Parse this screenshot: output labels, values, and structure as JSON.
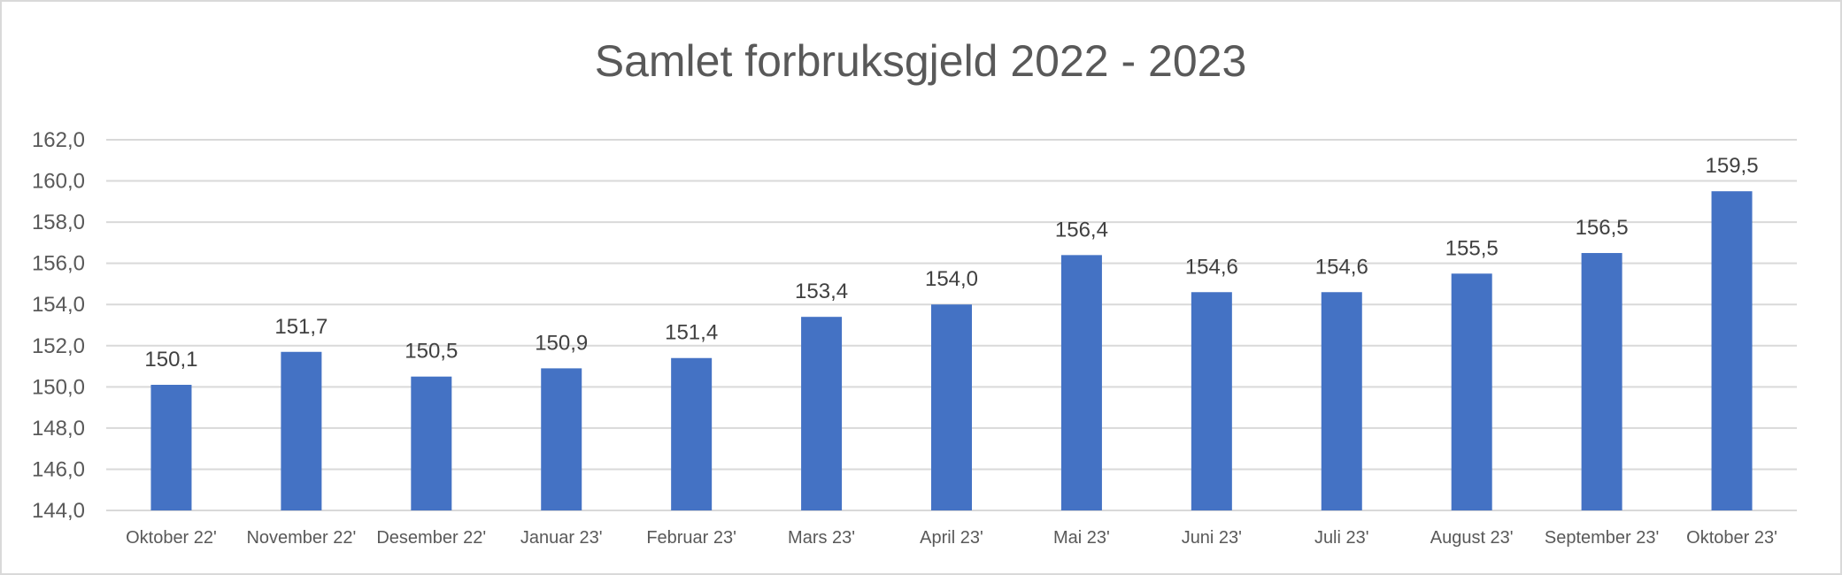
{
  "chart_data": {
    "type": "bar",
    "title": "Samlet forbruksgjeld 2022 - 2023",
    "categories": [
      "Oktober 22'",
      "November 22'",
      "Desember 22'",
      "Januar 23'",
      "Februar 23'",
      "Mars 23'",
      "April 23'",
      "Mai 23'",
      "Juni 23'",
      "Juli 23'",
      "August 23'",
      "September 23'",
      "Oktober 23'"
    ],
    "values": [
      150.1,
      151.7,
      150.5,
      150.9,
      151.4,
      153.4,
      154.0,
      156.4,
      154.6,
      154.6,
      155.5,
      156.5,
      159.5
    ],
    "value_labels": [
      "150,1",
      "151,7",
      "150,5",
      "150,9",
      "151,4",
      "153,4",
      "154,0",
      "156,4",
      "154,6",
      "154,6",
      "155,5",
      "156,5",
      "159,5"
    ],
    "y_ticks": [
      "144,0",
      "146,0",
      "148,0",
      "150,0",
      "152,0",
      "154,0",
      "156,0",
      "158,0",
      "160,0",
      "162,0"
    ],
    "ylim": [
      144,
      162
    ],
    "xlabel": "",
    "ylabel": "",
    "grid": true,
    "legend": "none",
    "bar_color": "#4472C4"
  }
}
